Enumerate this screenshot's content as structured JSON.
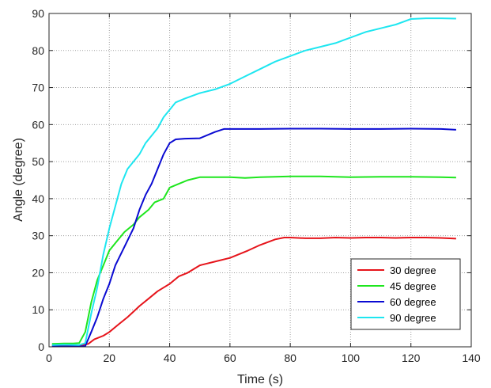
{
  "chart_data": {
    "type": "line",
    "title": "",
    "xlabel": "Time (s)",
    "ylabel": "Angle (degree)",
    "xlim": [
      0,
      140
    ],
    "ylim": [
      0,
      90
    ],
    "xticks": [
      0,
      20,
      40,
      60,
      80,
      100,
      120,
      140
    ],
    "yticks": [
      0,
      10,
      20,
      30,
      40,
      50,
      60,
      70,
      80,
      90
    ],
    "grid": true,
    "legend_position": "bottom-right",
    "series": [
      {
        "name": "30 degree",
        "color": "#e6141b",
        "points": [
          [
            1,
            0.3
          ],
          [
            5,
            0.4
          ],
          [
            10,
            0.3
          ],
          [
            13,
            0.8
          ],
          [
            15,
            2
          ],
          [
            18,
            3
          ],
          [
            20,
            4
          ],
          [
            23,
            6
          ],
          [
            26,
            8
          ],
          [
            28,
            9.5
          ],
          [
            30,
            11
          ],
          [
            33,
            13
          ],
          [
            36,
            15
          ],
          [
            38,
            16
          ],
          [
            40,
            17
          ],
          [
            43,
            19
          ],
          [
            46,
            20
          ],
          [
            50,
            22
          ],
          [
            55,
            23
          ],
          [
            60,
            24
          ],
          [
            63,
            25
          ],
          [
            66,
            26
          ],
          [
            70,
            27.5
          ],
          [
            75,
            29
          ],
          [
            78,
            29.5
          ],
          [
            80,
            29.5
          ],
          [
            85,
            29.3
          ],
          [
            90,
            29.3
          ],
          [
            95,
            29.5
          ],
          [
            100,
            29.4
          ],
          [
            105,
            29.5
          ],
          [
            110,
            29.5
          ],
          [
            115,
            29.4
          ],
          [
            120,
            29.5
          ],
          [
            125,
            29.5
          ],
          [
            130,
            29.4
          ],
          [
            135,
            29.2
          ]
        ]
      },
      {
        "name": "45 degree",
        "color": "#1ee61e",
        "points": [
          [
            1,
            0.8
          ],
          [
            5,
            0.9
          ],
          [
            8,
            0.9
          ],
          [
            10,
            1
          ],
          [
            12,
            4
          ],
          [
            14,
            12
          ],
          [
            16,
            18
          ],
          [
            18,
            22
          ],
          [
            20,
            26
          ],
          [
            22,
            28
          ],
          [
            25,
            31
          ],
          [
            28,
            33
          ],
          [
            30,
            35
          ],
          [
            33,
            37
          ],
          [
            35,
            39
          ],
          [
            38,
            40
          ],
          [
            40,
            43
          ],
          [
            43,
            44
          ],
          [
            46,
            45
          ],
          [
            50,
            45.8
          ],
          [
            55,
            45.8
          ],
          [
            60,
            45.8
          ],
          [
            65,
            45.6
          ],
          [
            70,
            45.8
          ],
          [
            80,
            46
          ],
          [
            90,
            46
          ],
          [
            100,
            45.8
          ],
          [
            110,
            45.9
          ],
          [
            120,
            45.9
          ],
          [
            130,
            45.8
          ],
          [
            135,
            45.7
          ]
        ]
      },
      {
        "name": "60 degree",
        "color": "#0a0ad2",
        "points": [
          [
            1,
            0.1
          ],
          [
            5,
            0.1
          ],
          [
            10,
            0.1
          ],
          [
            12,
            0.2
          ],
          [
            14,
            4
          ],
          [
            16,
            8
          ],
          [
            18,
            13
          ],
          [
            20,
            17
          ],
          [
            22,
            22
          ],
          [
            25,
            27
          ],
          [
            28,
            32
          ],
          [
            30,
            37
          ],
          [
            32,
            41
          ],
          [
            34,
            44
          ],
          [
            36,
            48
          ],
          [
            38,
            52
          ],
          [
            40,
            55
          ],
          [
            42,
            56
          ],
          [
            45,
            56.2
          ],
          [
            50,
            56.3
          ],
          [
            55,
            58
          ],
          [
            58,
            58.8
          ],
          [
            60,
            58.8
          ],
          [
            70,
            58.8
          ],
          [
            80,
            58.9
          ],
          [
            90,
            58.9
          ],
          [
            100,
            58.8
          ],
          [
            110,
            58.8
          ],
          [
            120,
            58.9
          ],
          [
            130,
            58.8
          ],
          [
            135,
            58.6
          ]
        ]
      },
      {
        "name": "90 degree",
        "color": "#1ee6f0",
        "points": [
          [
            1,
            0.5
          ],
          [
            5,
            0.6
          ],
          [
            10,
            0.5
          ],
          [
            12,
            1
          ],
          [
            14,
            9
          ],
          [
            16,
            16
          ],
          [
            18,
            25
          ],
          [
            20,
            32
          ],
          [
            22,
            38
          ],
          [
            24,
            44
          ],
          [
            26,
            48
          ],
          [
            28,
            50
          ],
          [
            30,
            52
          ],
          [
            32,
            55
          ],
          [
            34,
            57
          ],
          [
            36,
            59
          ],
          [
            38,
            62
          ],
          [
            40,
            64
          ],
          [
            42,
            66
          ],
          [
            45,
            67
          ],
          [
            50,
            68.5
          ],
          [
            55,
            69.5
          ],
          [
            60,
            71
          ],
          [
            65,
            73
          ],
          [
            70,
            75
          ],
          [
            75,
            77
          ],
          [
            80,
            78.5
          ],
          [
            85,
            80
          ],
          [
            90,
            81
          ],
          [
            95,
            82
          ],
          [
            100,
            83.5
          ],
          [
            105,
            85
          ],
          [
            110,
            86
          ],
          [
            115,
            87
          ],
          [
            120,
            88.5
          ],
          [
            125,
            88.7
          ],
          [
            130,
            88.7
          ],
          [
            135,
            88.6
          ]
        ]
      }
    ]
  }
}
